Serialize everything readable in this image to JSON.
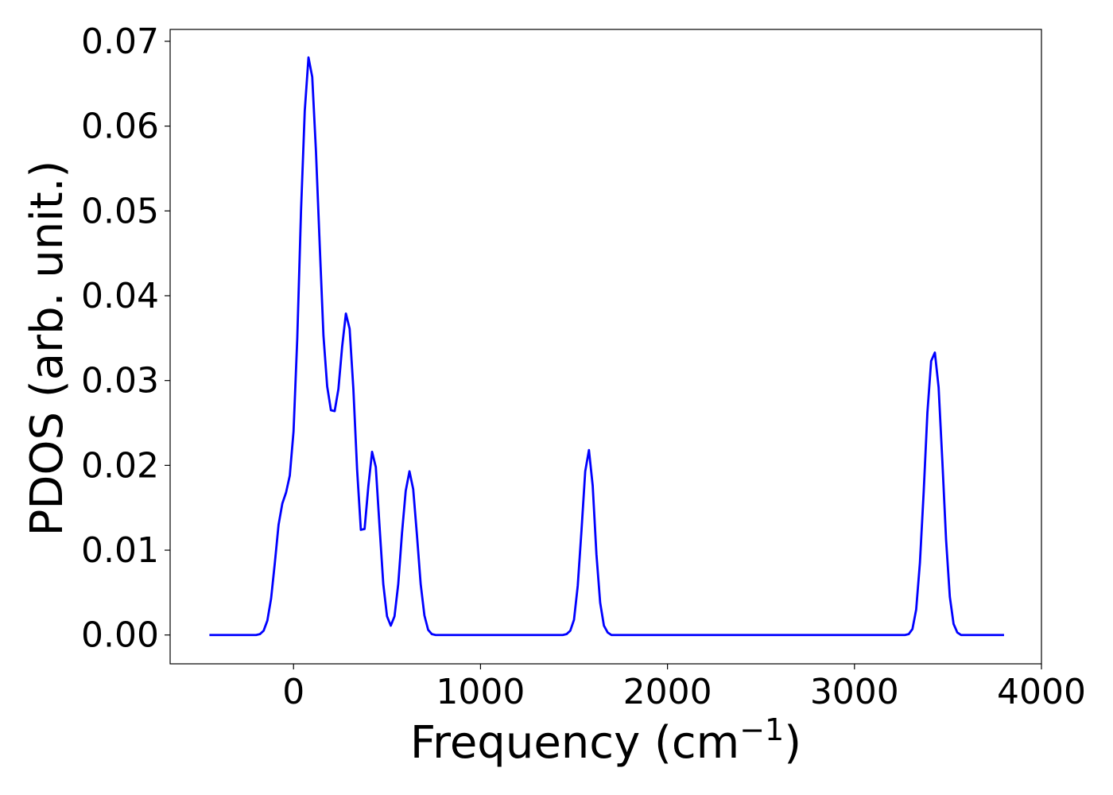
{
  "chart_data": {
    "type": "line",
    "title": "",
    "xlabel": "Frequency (cm",
    "xlabel_sup": "−1",
    "xlabel_close": ")",
    "ylabel": "PDOS (arb. unit.)",
    "xlim": [
      -660,
      4000
    ],
    "ylim": [
      -0.0034,
      0.0714
    ],
    "xticks": [
      0,
      1000,
      2000,
      3000,
      4000
    ],
    "xtick_labels": [
      "0",
      "1000",
      "2000",
      "3000",
      "4000"
    ],
    "yticks": [
      0.0,
      0.01,
      0.02,
      0.03,
      0.04,
      0.05,
      0.06,
      0.07
    ],
    "ytick_labels": [
      "0.00",
      "0.01",
      "0.02",
      "0.03",
      "0.04",
      "0.05",
      "0.06",
      "0.07"
    ],
    "grid": false,
    "color": "#0000ff",
    "series": [
      {
        "x": [
          -450,
          -200,
          -180,
          -160,
          -140,
          -120,
          -100,
          -80,
          -60,
          -40,
          -20,
          0,
          20,
          40,
          60,
          80,
          100,
          120,
          140,
          160,
          180,
          200,
          220,
          240,
          260,
          280,
          300,
          320,
          340,
          360,
          380,
          400,
          420,
          440,
          460,
          480,
          500,
          520,
          540,
          560,
          580,
          600,
          620,
          640,
          660,
          680,
          700,
          720,
          740,
          760,
          780,
          800,
          820,
          1440,
          1460,
          1480,
          1500,
          1520,
          1540,
          1560,
          1580,
          1600,
          1620,
          1640,
          1660,
          1680,
          1700,
          1720,
          3270,
          3290,
          3310,
          3330,
          3350,
          3370,
          3390,
          3410,
          3430,
          3450,
          3470,
          3490,
          3510,
          3530,
          3550,
          3570,
          3590,
          3800
        ],
        "y": [
          0.0,
          0.0,
          0.0001,
          0.0005,
          0.0017,
          0.0043,
          0.0085,
          0.013,
          0.0155,
          0.0168,
          0.0188,
          0.024,
          0.035,
          0.05,
          0.0618,
          0.0681,
          0.0658,
          0.057,
          0.046,
          0.0353,
          0.0293,
          0.0265,
          0.0264,
          0.029,
          0.034,
          0.0379,
          0.0361,
          0.029,
          0.0195,
          0.0124,
          0.0125,
          0.0175,
          0.0216,
          0.0198,
          0.0128,
          0.006,
          0.0022,
          0.0011,
          0.0022,
          0.006,
          0.012,
          0.017,
          0.0193,
          0.0172,
          0.0118,
          0.006,
          0.0023,
          0.0006,
          0.0001,
          0.0,
          0.0,
          0.0,
          0.0,
          0.0,
          0.0001,
          0.0005,
          0.0018,
          0.0058,
          0.0123,
          0.0193,
          0.0218,
          0.0176,
          0.0095,
          0.0038,
          0.0011,
          0.0003,
          0.0,
          0.0,
          0.0,
          0.0001,
          0.0007,
          0.003,
          0.0085,
          0.0168,
          0.0262,
          0.0323,
          0.0333,
          0.0292,
          0.0205,
          0.0112,
          0.0045,
          0.0013,
          0.0003,
          0.0,
          0.0,
          0.0
        ]
      }
    ]
  }
}
